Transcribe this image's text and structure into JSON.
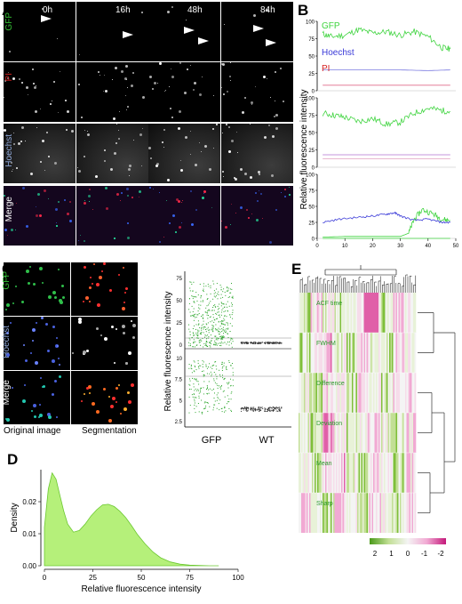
{
  "panel_labels": {
    "a": "A",
    "b": "B",
    "c": "C",
    "d": "D",
    "e": "E"
  },
  "panel_a": {
    "timepoints": [
      "0h",
      "16h",
      "48h",
      "84h"
    ],
    "rows": [
      {
        "label": "GFP",
        "color": "#34c134"
      },
      {
        "label": "PI",
        "color": "#d62222"
      },
      {
        "label": "Hoechst",
        "color": "#8fa8d8"
      },
      {
        "label": "Merge",
        "color": "#ffffff"
      }
    ]
  },
  "panel_b": {
    "ylabel": "Relative fluorescence intensity",
    "subplots": [
      {
        "yticks": [
          "100",
          "75",
          "50",
          "25",
          "0"
        ],
        "legend": [
          {
            "text": "GFP",
            "color": "#3fd43f"
          },
          {
            "text": "Hoechst",
            "color": "#3a3ad8"
          },
          {
            "text": "PI",
            "color": "#d62222"
          }
        ]
      },
      {
        "yticks": [
          "100",
          "75",
          "50",
          "25",
          "0"
        ],
        "legend": []
      },
      {
        "yticks": [
          "100",
          "75",
          "50",
          "25",
          "0"
        ],
        "legend": []
      }
    ],
    "xticks": [
      "0",
      "10",
      "20",
      "30",
      "40",
      "50"
    ]
  },
  "panel_c": {
    "rows": [
      {
        "label": "GFP",
        "color": "#34c134"
      },
      {
        "label": "Hoechst",
        "color": "#8fa8d8"
      },
      {
        "label": "Merge",
        "color": "#ffffff"
      }
    ],
    "captions": {
      "original": "Original image",
      "segmentation": "Segmentation"
    },
    "scatter": {
      "ylabel": "Relative fluorescence intensity",
      "categories": [
        "GFP",
        "WT"
      ],
      "yticks_top": [
        "75",
        "50",
        "25",
        "0"
      ],
      "yticks_bottom": [
        "10",
        "7.5",
        "5",
        "2.5"
      ]
    }
  },
  "chart_data": [
    {
      "type": "line",
      "xlabel": "",
      "ylabel": "Relative fluorescence intensity",
      "xlim": [
        0,
        50
      ],
      "ylim": [
        0,
        100
      ],
      "series": [
        {
          "name": "GFP",
          "values": [
            [
              2,
              82
            ],
            [
              5,
              78
            ],
            [
              10,
              80
            ],
            [
              15,
              88
            ],
            [
              20,
              83
            ],
            [
              25,
              85
            ],
            [
              30,
              80
            ],
            [
              35,
              85
            ],
            [
              40,
              78
            ],
            [
              45,
              62
            ],
            [
              48,
              60
            ]
          ]
        },
        {
          "name": "Hoechst",
          "values": [
            [
              2,
              30
            ],
            [
              10,
              30
            ],
            [
              20,
              30
            ],
            [
              30,
              30
            ],
            [
              40,
              29
            ],
            [
              48,
              30
            ]
          ]
        },
        {
          "name": "PI",
          "values": [
            [
              2,
              8
            ],
            [
              48,
              8
            ]
          ]
        }
      ]
    },
    {
      "type": "line",
      "ylabel": "Relative fluorescence intensity",
      "xlim": [
        0,
        50
      ],
      "ylim": [
        0,
        100
      ],
      "series": [
        {
          "values": [
            [
              2,
              78
            ],
            [
              6,
              75
            ],
            [
              10,
              72
            ],
            [
              15,
              66
            ],
            [
              20,
              70
            ],
            [
              25,
              62
            ],
            [
              30,
              65
            ],
            [
              35,
              78
            ],
            [
              40,
              85
            ],
            [
              45,
              82
            ],
            [
              48,
              80
            ]
          ]
        },
        {
          "values": [
            [
              2,
              18
            ],
            [
              48,
              18
            ]
          ]
        },
        {
          "values": [
            [
              2,
              12
            ],
            [
              48,
              12
            ]
          ]
        }
      ]
    },
    {
      "type": "line",
      "ylabel": "Relative fluorescence intensity",
      "xlim": [
        0,
        50
      ],
      "ylim": [
        0,
        100
      ],
      "series": [
        {
          "values": [
            [
              2,
              2
            ],
            [
              10,
              3
            ],
            [
              20,
              3
            ],
            [
              30,
              3
            ],
            [
              33,
              8
            ],
            [
              35,
              30
            ],
            [
              38,
              45
            ],
            [
              42,
              38
            ],
            [
              45,
              30
            ],
            [
              48,
              28
            ]
          ]
        },
        {
          "values": [
            [
              2,
              25
            ],
            [
              8,
              30
            ],
            [
              15,
              33
            ],
            [
              20,
              35
            ],
            [
              25,
              38
            ],
            [
              28,
              40
            ],
            [
              30,
              35
            ],
            [
              35,
              28
            ],
            [
              40,
              30
            ],
            [
              45,
              25
            ],
            [
              48,
              25
            ]
          ]
        },
        {
          "values": [
            [
              2,
              0
            ],
            [
              48,
              0
            ]
          ]
        }
      ]
    },
    {
      "type": "area",
      "xlabel": "Relative fluorescence intensity",
      "ylabel": "Density",
      "xlim": [
        0,
        100
      ],
      "ylim": [
        0,
        0.03
      ],
      "xticks": [
        "0",
        "25",
        "50",
        "75",
        "100"
      ],
      "yticks": [
        "0.00",
        "0.01",
        "0.02"
      ],
      "x": [
        0,
        2,
        4,
        6,
        8,
        10,
        12,
        15,
        18,
        21,
        24,
        27,
        30,
        33,
        36,
        39,
        42,
        45,
        48,
        52,
        56,
        60,
        65,
        70,
        75,
        80,
        85,
        90
      ],
      "values": [
        0.012,
        0.024,
        0.029,
        0.027,
        0.022,
        0.017,
        0.013,
        0.0105,
        0.011,
        0.013,
        0.0155,
        0.0175,
        0.019,
        0.0192,
        0.0185,
        0.017,
        0.015,
        0.0125,
        0.0098,
        0.0068,
        0.0043,
        0.0025,
        0.0012,
        0.0005,
        0.0002,
        0.0001,
        0.0,
        0.0
      ]
    },
    {
      "type": "heatmap",
      "rows": [
        "ACF time",
        "FWHM",
        "Difference",
        "Deviation",
        "Mean",
        "Sharp"
      ],
      "colorbar_ticks": [
        "2",
        "1",
        "0",
        "-1",
        "-2"
      ],
      "colorbar_colors": [
        "#4a9a1a",
        "#c2df95",
        "#f4f4f4",
        "#f1a9d3",
        "#c4187a"
      ]
    }
  ]
}
